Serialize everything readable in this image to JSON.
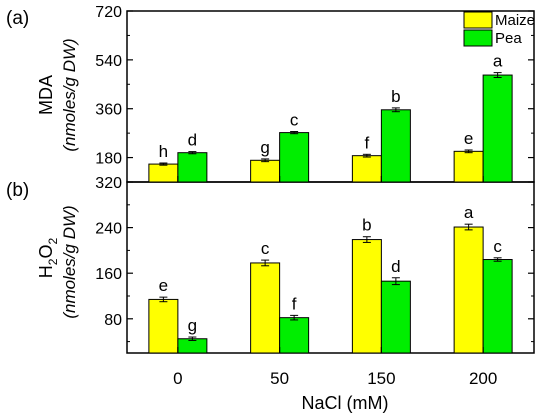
{
  "chart_data": {
    "type": "bar",
    "xlabel": "NaCl (mM)",
    "categories": [
      "0",
      "50",
      "150",
      "200"
    ],
    "legend": {
      "placement": "top-right",
      "entries": [
        "Maize",
        "Pea"
      ]
    },
    "colors": {
      "Maize": "#ffff00",
      "Pea": "#00ee00"
    },
    "panels": [
      {
        "panel_label": "(a)",
        "ylabel_main": "MDA",
        "ylabel_unit": "(nmoles/g DW)",
        "ylim": [
          90,
          720
        ],
        "yticks": [
          "180",
          "360",
          "540",
          "720"
        ],
        "series": [
          {
            "name": "Maize",
            "values": [
              156,
              170,
              187,
              203
            ],
            "errors": [
              4,
              5,
              5,
              5
            ],
            "letters": [
              "h",
              "g",
              "f",
              "e"
            ]
          },
          {
            "name": "Pea",
            "values": [
              198,
              272,
              356,
              484
            ],
            "errors": [
              4,
              4,
              7,
              9
            ],
            "letters": [
              "d",
              "c",
              "b",
              "a"
            ]
          }
        ]
      },
      {
        "panel_label": "(b)",
        "ylabel_main": "H",
        "ylabel_sub1": "2",
        "ylabel_mid": "O",
        "ylabel_sub2": "2",
        "ylabel_unit": "(nmoles/g DW)",
        "ylim": [
          20,
          320
        ],
        "yticks": [
          "80",
          "160",
          "240",
          "320"
        ],
        "series": [
          {
            "name": "Maize",
            "values": [
              114,
              178,
              219,
              241
            ],
            "errors": [
              4,
              5,
              5,
              5
            ],
            "letters": [
              "e",
              "c",
              "b",
              "a"
            ]
          },
          {
            "name": "Pea",
            "values": [
              45,
              82,
              146,
              184
            ],
            "errors": [
              3,
              4,
              6,
              3
            ],
            "letters": [
              "g",
              "f",
              "d",
              "c"
            ]
          }
        ]
      }
    ]
  }
}
